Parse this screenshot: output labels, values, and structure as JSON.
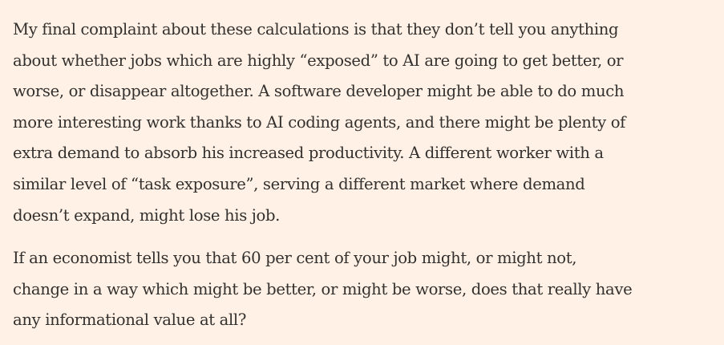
{
  "article": {
    "paragraphs": [
      {
        "lines": [
          "My final complaint about these calculations is that they don’t tell you anything",
          "about whether jobs which are highly “exposed” to AI are going to get better, or",
          "worse, or disappear altogether. A software developer might be able to do much",
          "more interesting work thanks to AI coding agents, and there might be plenty of",
          "extra demand to absorb his increased productivity. A different worker with a",
          "similar level of “task exposure”, serving a different market where demand",
          "doesn’t expand, might lose his job."
        ]
      },
      {
        "lines": [
          "If an economist tells you that 60 per cent of your job might, or might not,",
          "change in a way which might be better, or might be worse, does that really have",
          "any informational value at all?"
        ]
      }
    ]
  }
}
